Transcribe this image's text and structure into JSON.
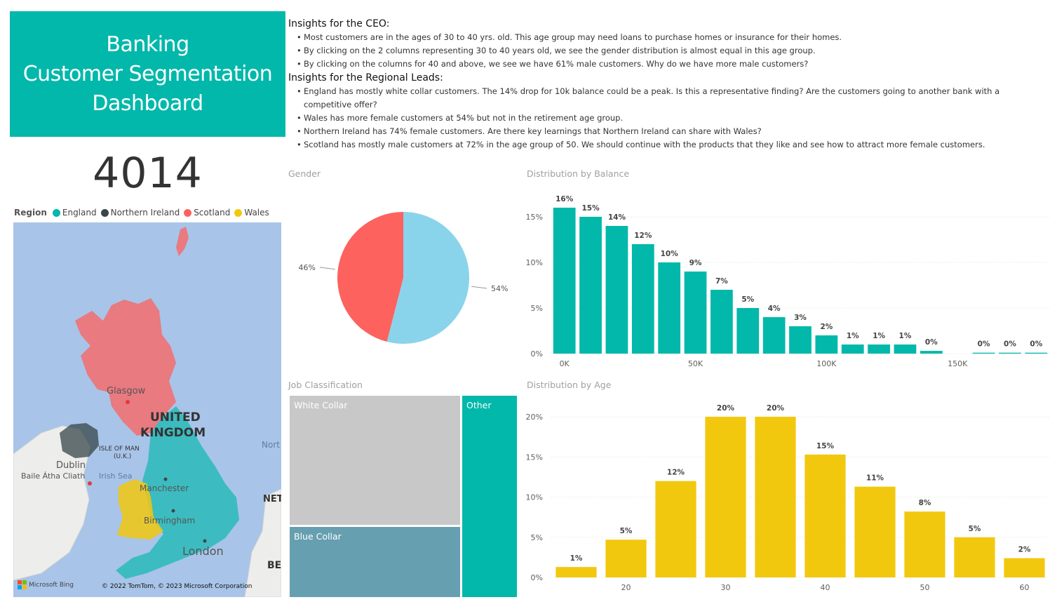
{
  "title": {
    "line1": "Banking",
    "line2": "Customer Segmentation",
    "line3": "Dashboard"
  },
  "kpi": {
    "value": "4014"
  },
  "legend": {
    "title": "Region",
    "items": [
      {
        "label": "England",
        "color": "#01b8aa"
      },
      {
        "label": "Northern Ireland",
        "color": "#374649"
      },
      {
        "label": "Scotland",
        "color": "#fd625e"
      },
      {
        "label": "Wales",
        "color": "#f2c80f"
      }
    ]
  },
  "map": {
    "labels": {
      "glasgow": "Glasgow",
      "uk1": "UNITED",
      "uk2": "KINGDOM",
      "isle1": "ISLE OF MAN",
      "isle2": "(U.K.)",
      "north": "Nort",
      "dublin": "Dublin",
      "baile": "Baile Átha Cliath",
      "irish_sea": "Irish Sea",
      "manchester": "Manchester",
      "net": "NET",
      "birmingham": "Birmingham",
      "london": "London",
      "be": "BE",
      "bing": "Microsoft Bing",
      "copyright": "© 2022 TomTom, © 2023 Microsoft Corporation"
    }
  },
  "insights": {
    "ceo_heading": "Insights for the CEO:",
    "ceo_items": [
      "Most customers are in the ages of 30 to 40 yrs. old. This age group may need loans to purchase homes or insurance for their homes.",
      "By clicking on the 2 columns representing 30 to 40 years old, we see the gender distribution is almost equal in this age group.",
      "By clicking on the columns for 40 and above, we see we have 61% male customers. Why do we have more male customers?"
    ],
    "regional_heading": "Insights for the Regional Leads:",
    "regional_items": [
      "England has mostly white collar customers. The 14% drop for 10k balance could be a peak. Is this a representative finding? Are the customers going to another bank with a competitive offer?",
      "Wales has more female customers at 54% but not in the retirement age group.",
      "Northern Ireland has 74% female customers. Are there key learnings that Northern Ireland can share with Wales?",
      "Scotland has mostly male customers at 72% in the age group of 50. We should continue with the products that they like and see how to attract more female customers."
    ]
  },
  "visual_titles": {
    "gender": "Gender",
    "balance": "Distribution by Balance",
    "job": "Job Classification",
    "age": "Distribution by Age"
  },
  "treemap": {
    "cells": [
      {
        "label": "White Collar",
        "color": "#c8c8c8"
      },
      {
        "label": "Blue Collar",
        "color": "#669fb0"
      },
      {
        "label": "Other",
        "color": "#01b8aa"
      }
    ]
  },
  "chart_data": [
    {
      "id": "gender",
      "type": "pie",
      "title": "Gender",
      "slices": [
        {
          "label": "54%",
          "value": 54,
          "color": "#8ad4eb"
        },
        {
          "label": "46%",
          "value": 46,
          "color": "#fd625e"
        }
      ]
    },
    {
      "id": "balance",
      "type": "bar",
      "title": "Distribution by Balance",
      "color": "#01b8aa",
      "x": [
        0,
        10000,
        20000,
        30000,
        40000,
        50000,
        60000,
        70000,
        80000,
        90000,
        100000,
        110000,
        120000,
        130000,
        140000,
        160000,
        170000,
        180000
      ],
      "values": [
        16,
        15,
        14,
        12,
        10,
        9,
        7,
        5,
        4,
        3,
        2,
        1,
        1,
        1,
        0,
        0,
        0,
        0
      ],
      "display_values": [
        16,
        15,
        14,
        12,
        10,
        9,
        7,
        5,
        4,
        3,
        2,
        1,
        1,
        1,
        0.3,
        0.1,
        0.1,
        0.1
      ],
      "data_labels": [
        "16%",
        "15%",
        "14%",
        "12%",
        "10%",
        "9%",
        "7%",
        "5%",
        "4%",
        "3%",
        "2%",
        "1%",
        "1%",
        "1%",
        "0%",
        "0%",
        "0%",
        "0%"
      ],
      "xticks": [
        {
          "value": 0,
          "label": "0K"
        },
        {
          "value": 50000,
          "label": "50K"
        },
        {
          "value": 100000,
          "label": "100K"
        },
        {
          "value": 150000,
          "label": "150K"
        }
      ],
      "yticks": [
        {
          "value": 0,
          "label": "0%"
        },
        {
          "value": 5,
          "label": "5%"
        },
        {
          "value": 10,
          "label": "10%"
        },
        {
          "value": 15,
          "label": "15%"
        }
      ],
      "xlim": [
        -5000,
        185000
      ],
      "ylim": [
        0,
        17
      ]
    },
    {
      "id": "age",
      "type": "bar",
      "title": "Distribution by Age",
      "color": "#f2c80f",
      "x": [
        15,
        20,
        25,
        30,
        35,
        40,
        45,
        50,
        55,
        60
      ],
      "values": [
        1,
        5,
        12,
        20,
        20,
        15,
        11,
        8,
        5,
        2
      ],
      "display_values": [
        1.3,
        4.7,
        12,
        20,
        20,
        15.3,
        11.3,
        8.2,
        5,
        2.4
      ],
      "data_labels": [
        "1%",
        "5%",
        "12%",
        "20%",
        "20%",
        "15%",
        "11%",
        "8%",
        "5%",
        "2%"
      ],
      "xticks": [
        {
          "value": 20,
          "label": "20"
        },
        {
          "value": 30,
          "label": "30"
        },
        {
          "value": 40,
          "label": "40"
        },
        {
          "value": 50,
          "label": "50"
        },
        {
          "value": 60,
          "label": "60"
        }
      ],
      "yticks": [
        {
          "value": 0,
          "label": "0%"
        },
        {
          "value": 5,
          "label": "5%"
        },
        {
          "value": 10,
          "label": "10%"
        },
        {
          "value": 15,
          "label": "15%"
        },
        {
          "value": 20,
          "label": "20%"
        }
      ],
      "xlim": [
        12.5,
        62.5
      ],
      "ylim": [
        0,
        20
      ]
    }
  ]
}
